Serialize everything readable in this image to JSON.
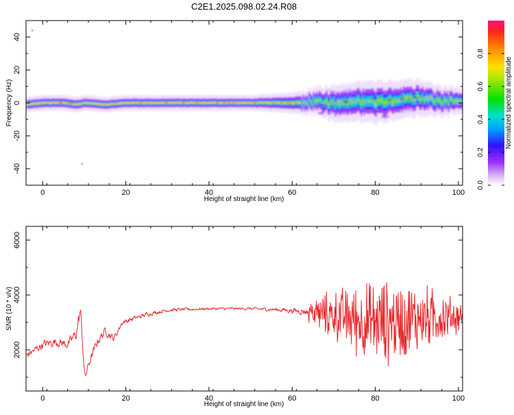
{
  "chart_data": [
    {
      "type": "heatmap",
      "title": "C2E1.2025.098.02.24.R08",
      "xlabel": "Height of straight line (km)",
      "ylabel": "Frequency (Hz)",
      "xlim": [
        -4,
        101
      ],
      "ylim": [
        -50,
        50
      ],
      "xticks": [
        0,
        20,
        40,
        60,
        80,
        100
      ],
      "yticks": [
        -40,
        -20,
        0,
        20,
        40
      ],
      "colorbar": {
        "label": "Normalized spectral amplitude",
        "ticks": [
          "0.0",
          "0.2",
          "0.4",
          "0.6",
          "0.8"
        ],
        "range": [
          0,
          1
        ]
      },
      "band_center_hz": [
        {
          "x": -4,
          "y": -1
        },
        {
          "x": 0,
          "y": 0
        },
        {
          "x": 5,
          "y": 0
        },
        {
          "x": 8,
          "y": -1
        },
        {
          "x": 10,
          "y": 0
        },
        {
          "x": 15,
          "y": -1
        },
        {
          "x": 20,
          "y": 0
        },
        {
          "x": 30,
          "y": 0
        },
        {
          "x": 40,
          "y": 0
        },
        {
          "x": 50,
          "y": 0
        },
        {
          "x": 55,
          "y": 0
        },
        {
          "x": 60,
          "y": 0
        },
        {
          "x": 65,
          "y": 1
        },
        {
          "x": 70,
          "y": 0
        },
        {
          "x": 75,
          "y": 1
        },
        {
          "x": 80,
          "y": 0
        },
        {
          "x": 85,
          "y": 2
        },
        {
          "x": 90,
          "y": 3
        },
        {
          "x": 95,
          "y": 1
        },
        {
          "x": 100,
          "y": 1
        }
      ],
      "band_halfwidth_hz": [
        {
          "x": -4,
          "y": 2
        },
        {
          "x": 10,
          "y": 2
        },
        {
          "x": 50,
          "y": 2
        },
        {
          "x": 60,
          "y": 3
        },
        {
          "x": 65,
          "y": 4
        },
        {
          "x": 70,
          "y": 6
        },
        {
          "x": 80,
          "y": 7
        },
        {
          "x": 90,
          "y": 6
        },
        {
          "x": 100,
          "y": 4
        }
      ]
    },
    {
      "type": "line",
      "title": "",
      "xlabel": "Height of straight line (km)",
      "ylabel": "SNR (10 * v/v)",
      "xlim": [
        -4,
        101
      ],
      "ylim": [
        500,
        6500
      ],
      "xticks": [
        0,
        20,
        40,
        60,
        80,
        100
      ],
      "yticks": [
        2000,
        4000,
        6000
      ],
      "color": "#e8262a",
      "series": [
        {
          "envelope": [
            {
              "x": -4,
              "y": 1800,
              "amp": 400
            },
            {
              "x": 0,
              "y": 2200,
              "amp": 500
            },
            {
              "x": 3,
              "y": 2300,
              "amp": 500
            },
            {
              "x": 6,
              "y": 2200,
              "amp": 500
            },
            {
              "x": 8,
              "y": 2600,
              "amp": 700
            },
            {
              "x": 9,
              "y": 3500,
              "amp": 900
            },
            {
              "x": 10,
              "y": 900,
              "amp": 500
            },
            {
              "x": 11,
              "y": 1500,
              "amp": 500
            },
            {
              "x": 13,
              "y": 2300,
              "amp": 500
            },
            {
              "x": 15,
              "y": 2700,
              "amp": 500
            },
            {
              "x": 17,
              "y": 2400,
              "amp": 400
            },
            {
              "x": 19,
              "y": 3000,
              "amp": 300
            },
            {
              "x": 25,
              "y": 3300,
              "amp": 250
            },
            {
              "x": 30,
              "y": 3450,
              "amp": 200
            },
            {
              "x": 40,
              "y": 3500,
              "amp": 150
            },
            {
              "x": 50,
              "y": 3500,
              "amp": 150
            },
            {
              "x": 58,
              "y": 3450,
              "amp": 250
            },
            {
              "x": 63,
              "y": 3400,
              "amp": 400
            },
            {
              "x": 68,
              "y": 3300,
              "amp": 900
            },
            {
              "x": 73,
              "y": 3200,
              "amp": 1300
            },
            {
              "x": 78,
              "y": 3000,
              "amp": 1700
            },
            {
              "x": 83,
              "y": 3000,
              "amp": 1800
            },
            {
              "x": 88,
              "y": 3100,
              "amp": 1600
            },
            {
              "x": 93,
              "y": 3200,
              "amp": 1300
            },
            {
              "x": 97,
              "y": 3200,
              "amp": 1000
            },
            {
              "x": 101,
              "y": 3200,
              "amp": 600
            }
          ]
        }
      ]
    }
  ]
}
